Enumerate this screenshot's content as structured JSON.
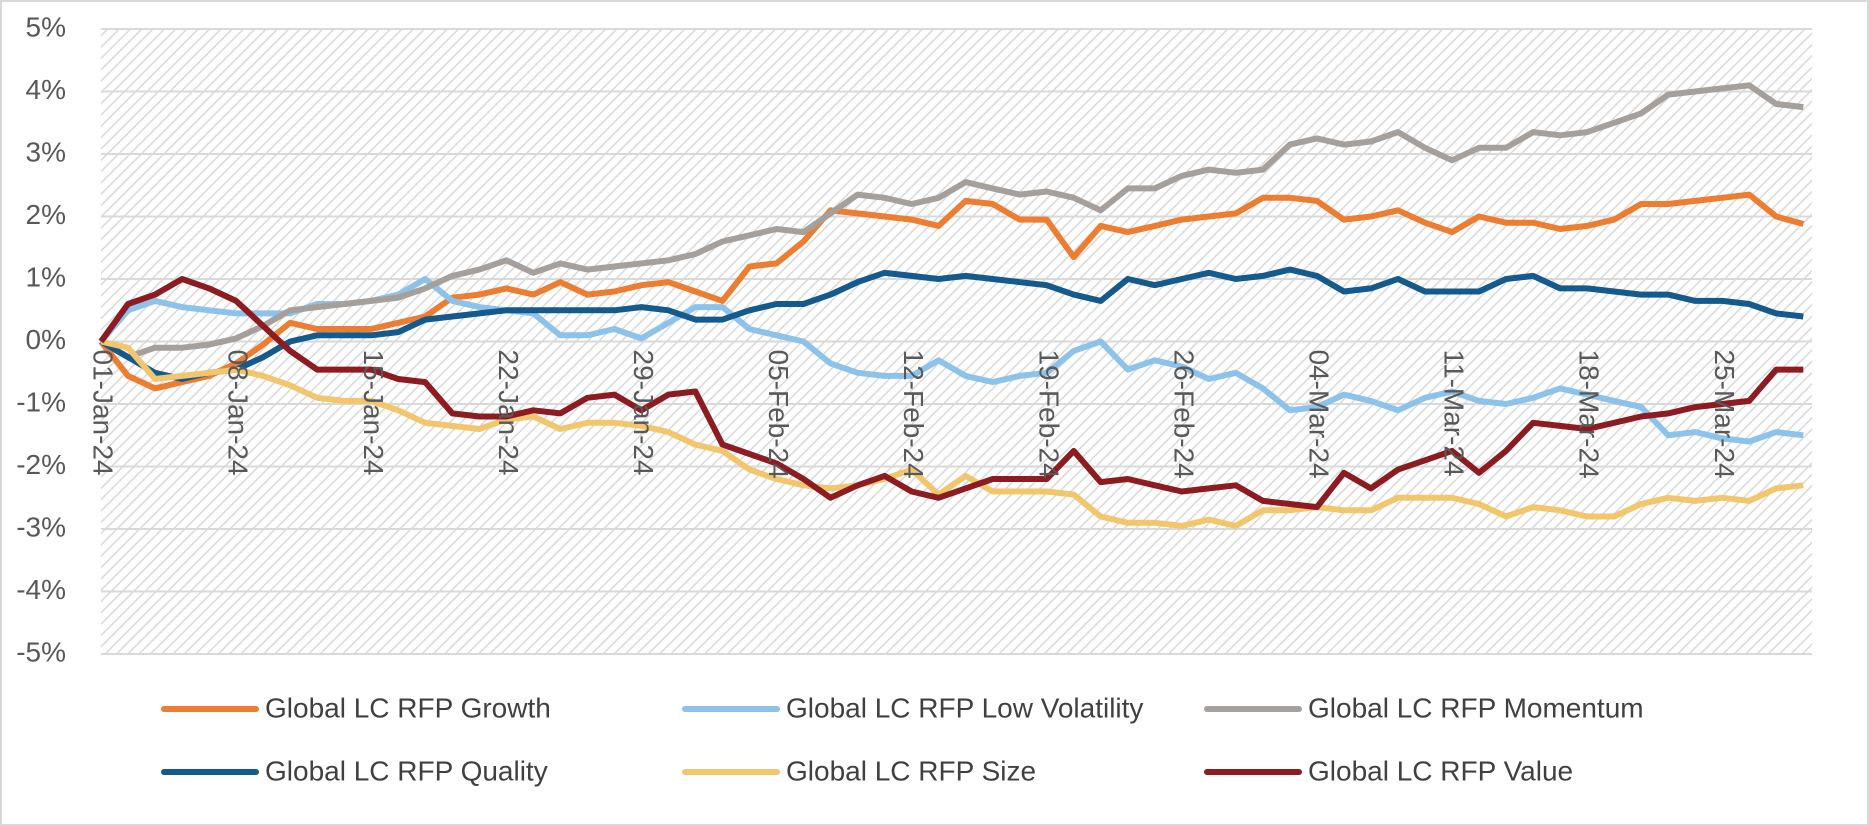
{
  "chart_data": {
    "type": "line",
    "categories": [
      "01-Jan-24",
      null,
      null,
      null,
      null,
      "08-Jan-24",
      null,
      null,
      null,
      null,
      "15-Jan-24",
      null,
      null,
      null,
      null,
      "22-Jan-24",
      null,
      null,
      null,
      null,
      "29-Jan-24",
      null,
      null,
      null,
      null,
      "05-Feb-24",
      null,
      null,
      null,
      null,
      "12-Feb-24",
      null,
      null,
      null,
      null,
      "19-Feb-24",
      null,
      null,
      null,
      null,
      "26-Feb-24",
      null,
      null,
      null,
      null,
      "04-Mar-24",
      null,
      null,
      null,
      null,
      "11-Mar-24",
      null,
      null,
      null,
      null,
      "18-Mar-24",
      null,
      null,
      null,
      null,
      "25-Mar-24",
      null,
      null,
      null
    ],
    "series": [
      {
        "name": "Global LC RFP Growth",
        "color": "#ED7D31",
        "values": [
          0,
          -0.55,
          -0.75,
          -0.65,
          -0.55,
          -0.35,
          -0.05,
          0.3,
          0.2,
          0.2,
          0.2,
          0.3,
          0.4,
          0.7,
          0.75,
          0.85,
          0.75,
          0.95,
          0.75,
          0.8,
          0.9,
          0.95,
          0.8,
          0.65,
          1.2,
          1.25,
          1.6,
          2.1,
          2.05,
          2.0,
          1.95,
          1.85,
          2.25,
          2.2,
          1.95,
          1.95,
          1.35,
          1.85,
          1.75,
          1.85,
          1.95,
          2.0,
          2.05,
          2.3,
          2.3,
          2.25,
          1.95,
          2.0,
          2.1,
          1.9,
          1.75,
          2.0,
          1.9,
          1.9,
          1.8,
          1.85,
          1.95,
          2.2,
          2.2,
          2.25,
          2.3,
          2.35,
          2.0,
          1.88
        ]
      },
      {
        "name": "Global LC RFP Low Volatility",
        "color": "#8DC3EA",
        "values": [
          0,
          0.5,
          0.65,
          0.55,
          0.5,
          0.45,
          0.45,
          0.45,
          0.6,
          0.6,
          0.65,
          0.75,
          1.0,
          0.65,
          0.55,
          0.5,
          0.45,
          0.1,
          0.1,
          0.2,
          0.05,
          0.3,
          0.55,
          0.55,
          0.2,
          0.1,
          0.0,
          -0.35,
          -0.5,
          -0.55,
          -0.55,
          -0.3,
          -0.55,
          -0.65,
          -0.55,
          -0.5,
          -0.15,
          0.0,
          -0.45,
          -0.3,
          -0.4,
          -0.6,
          -0.5,
          -0.75,
          -1.1,
          -1.05,
          -0.85,
          -0.95,
          -1.1,
          -0.9,
          -0.8,
          -0.95,
          -1.0,
          -0.9,
          -0.75,
          -0.85,
          -0.95,
          -1.05,
          -1.5,
          -1.45,
          -1.55,
          -1.6,
          -1.45,
          -1.5
        ]
      },
      {
        "name": "Global LC RFP Momentum",
        "color": "#A5A09B",
        "values": [
          0,
          -0.25,
          -0.1,
          -0.1,
          -0.05,
          0.05,
          0.25,
          0.5,
          0.55,
          0.6,
          0.65,
          0.7,
          0.85,
          1.05,
          1.15,
          1.3,
          1.1,
          1.25,
          1.15,
          1.2,
          1.25,
          1.3,
          1.4,
          1.6,
          1.7,
          1.8,
          1.75,
          2.05,
          2.35,
          2.3,
          2.2,
          2.3,
          2.55,
          2.45,
          2.35,
          2.4,
          2.3,
          2.1,
          2.45,
          2.45,
          2.65,
          2.75,
          2.7,
          2.75,
          3.15,
          3.25,
          3.15,
          3.2,
          3.35,
          3.1,
          2.9,
          3.1,
          3.1,
          3.35,
          3.3,
          3.35,
          3.5,
          3.65,
          3.95,
          4.0,
          4.05,
          4.1,
          3.8,
          3.75
        ]
      },
      {
        "name": "Global LC RFP Quality",
        "color": "#145A8D",
        "values": [
          0,
          -0.25,
          -0.5,
          -0.6,
          -0.5,
          -0.45,
          -0.25,
          0.0,
          0.1,
          0.1,
          0.1,
          0.15,
          0.35,
          0.4,
          0.45,
          0.5,
          0.5,
          0.5,
          0.5,
          0.5,
          0.55,
          0.5,
          0.35,
          0.35,
          0.5,
          0.6,
          0.6,
          0.75,
          0.95,
          1.1,
          1.05,
          1.0,
          1.05,
          1.0,
          0.95,
          0.9,
          0.75,
          0.65,
          1.0,
          0.9,
          1.0,
          1.1,
          1.0,
          1.05,
          1.15,
          1.05,
          0.8,
          0.85,
          1.0,
          0.8,
          0.8,
          0.8,
          1.0,
          1.05,
          0.85,
          0.85,
          0.8,
          0.75,
          0.75,
          0.65,
          0.65,
          0.6,
          0.45,
          0.4
        ]
      },
      {
        "name": "Global LC RFP Size",
        "color": "#F2C66D",
        "values": [
          0,
          -0.1,
          -0.6,
          -0.55,
          -0.5,
          -0.45,
          -0.55,
          -0.7,
          -0.9,
          -0.95,
          -0.95,
          -1.1,
          -1.3,
          -1.35,
          -1.4,
          -1.25,
          -1.2,
          -1.4,
          -1.3,
          -1.3,
          -1.35,
          -1.45,
          -1.65,
          -1.75,
          -2.05,
          -2.2,
          -2.3,
          -2.35,
          -2.3,
          -2.2,
          -2.05,
          -2.45,
          -2.15,
          -2.4,
          -2.4,
          -2.4,
          -2.45,
          -2.8,
          -2.9,
          -2.9,
          -2.95,
          -2.85,
          -2.95,
          -2.7,
          -2.7,
          -2.65,
          -2.7,
          -2.7,
          -2.5,
          -2.5,
          -2.5,
          -2.6,
          -2.8,
          -2.65,
          -2.7,
          -2.8,
          -2.8,
          -2.6,
          -2.5,
          -2.55,
          -2.5,
          -2.55,
          -2.35,
          -2.3
        ]
      },
      {
        "name": "Global LC RFP Value",
        "color": "#8C1C22",
        "values": [
          0,
          0.6,
          0.75,
          1.0,
          0.85,
          0.65,
          0.25,
          -0.15,
          -0.45,
          -0.45,
          -0.45,
          -0.6,
          -0.65,
          -1.15,
          -1.2,
          -1.2,
          -1.1,
          -1.15,
          -0.9,
          -0.85,
          -1.1,
          -0.85,
          -0.8,
          -1.65,
          -1.8,
          -1.95,
          -2.2,
          -2.5,
          -2.3,
          -2.15,
          -2.4,
          -2.5,
          -2.35,
          -2.2,
          -2.2,
          -2.2,
          -1.75,
          -2.25,
          -2.2,
          -2.3,
          -2.4,
          -2.35,
          -2.3,
          -2.55,
          -2.6,
          -2.65,
          -2.1,
          -2.35,
          -2.05,
          -1.9,
          -1.75,
          -2.1,
          -1.75,
          -1.3,
          -1.35,
          -1.4,
          -1.3,
          -1.2,
          -1.15,
          -1.05,
          -1.0,
          -0.95,
          -0.45,
          -0.45
        ]
      }
    ],
    "ylim": [
      -5,
      5
    ],
    "yticks": [
      {
        "value": -5,
        "label": "-5%"
      },
      {
        "value": -4,
        "label": "-4%"
      },
      {
        "value": -3,
        "label": "-3%"
      },
      {
        "value": -2,
        "label": "-2%"
      },
      {
        "value": -1,
        "label": "-1%"
      },
      {
        "value": 0,
        "label": "0%"
      },
      {
        "value": 1,
        "label": "1%"
      },
      {
        "value": 2,
        "label": "2%"
      },
      {
        "value": 3,
        "label": "3%"
      },
      {
        "value": 4,
        "label": "4%"
      },
      {
        "value": 5,
        "label": "5%"
      }
    ],
    "grid": true,
    "legend": "bottom"
  }
}
